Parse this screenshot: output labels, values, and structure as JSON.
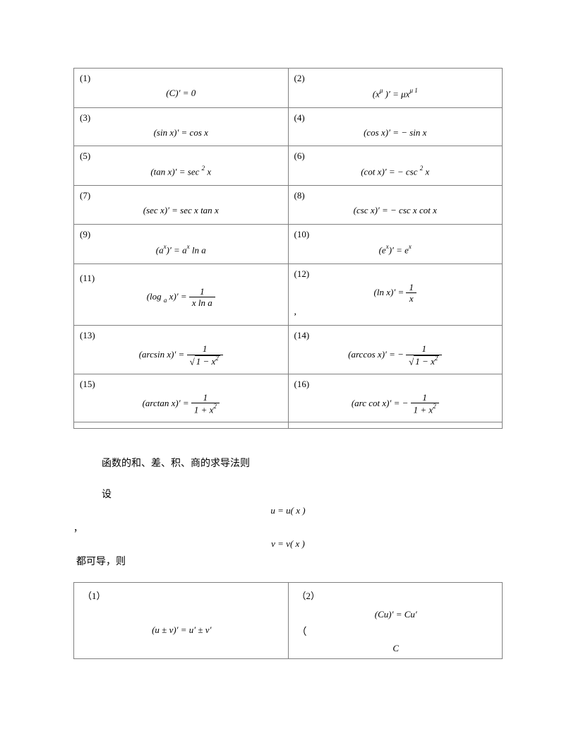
{
  "table1": {
    "rows": [
      {
        "l_idx": "(1)",
        "l_formula": "(<i>C</i>)′ = 0",
        "r_idx": "(2)",
        "r_formula": "(<i>x</i><span class='sup'>&#956;</span> )′ = &#956;<i>x</i><span class='sup'>&#956; 1</span>"
      },
      {
        "l_idx": "(3)",
        "l_formula": "(sin <i>x</i>)′ = cos <i>x</i>",
        "r_idx": "(4)",
        "r_formula": "(cos <i>x</i>)′ = − sin <i>x</i>"
      },
      {
        "l_idx": "(5)",
        "l_formula": "(tan <i>x</i>)′ = sec <span class='sup'>2</span> <i>x</i>",
        "r_idx": "(6)",
        "r_formula": "(cot <i>x</i>)′ = − csc <span class='sup'>2</span> <i>x</i>"
      },
      {
        "l_idx": "(7)",
        "l_formula": "(sec <i>x</i>)′ = sec <i>x</i> tan <i>x</i>",
        "r_idx": "(8)",
        "r_formula": "(csc <i>x</i>)′ = − csc <i>x</i> cot <i>x</i>"
      },
      {
        "l_idx": "(9)",
        "l_formula": "(<i>a</i><span class='sup'>x</span>)′ = <i>a</i><span class='sup'>x</span> ln <i>a</i>",
        "r_idx": "(10)",
        "r_formula": "(e<span class='sup'>x</span>)′ = e<span class='sup'>x</span>"
      }
    ],
    "row11": {
      "l_idx": "(11)",
      "l_num": "1",
      "l_den": "<i>x</i> ln <i>a</i>",
      "l_prefix": "(log <span class='sub'>a</span> <i>x</i>)′ = ",
      "r_idx": "(12)",
      "r_num": "1",
      "r_den": "<i>x</i>",
      "r_prefix": "(ln <i>x</i>)′ = ",
      "r_comma": ","
    },
    "row13": {
      "l_idx": "(13)",
      "l_prefix": "(arcsin  <i>x</i>)′ = ",
      "l_num": "1",
      "l_den": "√<span style='border-top:1px solid #000; padding:0 2px;'>1 − <i>x</i><span class='sup'>2</span></span>",
      "r_idx": "(14)",
      "r_prefix": "(arccos  <i>x</i>)′ = − ",
      "r_num": "1",
      "r_den": "√<span style='border-top:1px solid #000; padding:0 2px;'>1 − <i>x</i><span class='sup'>2</span></span>"
    },
    "row15": {
      "l_idx": "(15)",
      "l_prefix": "(arctan <i>x</i>)′ = ",
      "l_num": "1",
      "l_den": "1 + <i>x</i><span class='sup'>2</span>",
      "r_idx": "(16)",
      "r_prefix": "(arc cot <i>x</i>)′ = − ",
      "r_num": "1",
      "r_den": "1 + <i>x</i><span class='sup'>2</span>"
    }
  },
  "text": {
    "section_title": "函数的和、差、积、商的求导法则",
    "let": "设",
    "u_eq": "u = u( x )",
    "comma": "，",
    "v_eq": "v = v( x )",
    "both": "都可导，则"
  },
  "table2": {
    "l_idx": "（1）",
    "l_formula": "(<i>u</i> ± <i>v</i>)′ = <i>u</i>′ ± <i>v</i>′",
    "r_idx": "（2）",
    "r_f1": "(<i>Cu</i>)′ = <i>Cu</i>′",
    "r_paren": "（",
    "r_C": "<i>C</i>"
  },
  "style": {
    "border_color": "#808080",
    "background": "#ffffff",
    "font_body_pt": 14,
    "font_formula_pt": 13
  }
}
